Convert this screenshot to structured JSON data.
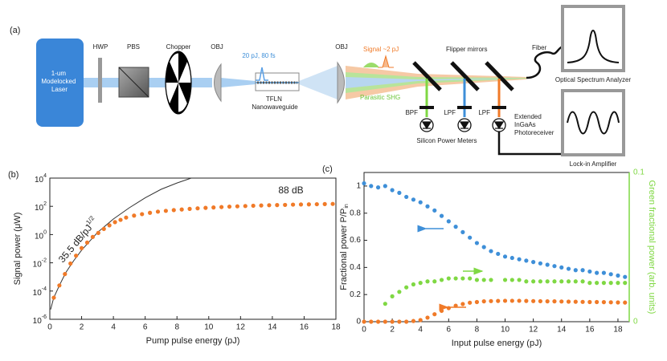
{
  "diagram": {
    "panel": "(a)",
    "laser": [
      "1-um",
      "Modelocked",
      "Laser"
    ],
    "hwp": "HWP",
    "pbs": "PBS",
    "chopper": "Chopper",
    "obj1": "OBJ",
    "pulse": "20 pJ, 80 fs",
    "waveguide": [
      "TFLN",
      "Nanowaveguide"
    ],
    "obj2": "OBJ",
    "signal": "Signal ~2 pJ",
    "shg": "Parasitic SHG",
    "flipper": "Flipper mirrors",
    "fiber": "Fiber",
    "osa": "Optical Spectrum Analyzer",
    "filters": [
      "BPF",
      "LPF",
      "LPF"
    ],
    "meters": "Silicon Power Meters",
    "photoreceiver": [
      "Extended",
      "InGaAs",
      "Photoreceiver"
    ],
    "lockin": "Lock-in Amplifier"
  },
  "chart_data": [
    {
      "type": "scatter",
      "panel": "(b)",
      "xlabel": "Pump pulse energy (pJ)",
      "ylabel": "Signal power (μW)",
      "xlim": [
        0,
        18
      ],
      "xticks": [
        0,
        2,
        4,
        6,
        8,
        10,
        12,
        14,
        16,
        18
      ],
      "ylim": [
        1e-06,
        10000
      ],
      "yscale": "log",
      "yticks": [
        {
          "value": 1e-06,
          "label": "10",
          "exponent": "-6"
        },
        {
          "value": 0.0001,
          "label": "10",
          "exponent": "-4"
        },
        {
          "value": 0.01,
          "label": "10",
          "exponent": "-2"
        },
        {
          "value": 1,
          "label": "10",
          "exponent": "0"
        },
        {
          "value": 100,
          "label": "10",
          "exponent": "2"
        },
        {
          "value": 10000,
          "label": "10",
          "exponent": "4"
        }
      ],
      "annotations": [
        {
          "text": "35.5 dB/pJ",
          "sup": "1/2"
        },
        {
          "text": "88 dB"
        }
      ],
      "series": [
        {
          "kind": "line",
          "color": "#333333",
          "x": [
            0.05,
            0.25,
            0.6,
            1,
            1.5,
            2,
            3,
            4,
            5,
            6,
            7,
            8,
            8.9
          ],
          "values": [
            5e-06,
            3.4e-05,
            0.00025,
            0.002,
            0.014,
            0.079,
            1.4,
            12.6,
            79,
            400,
            1600,
            4500,
            10000
          ]
        },
        {
          "kind": "scatter",
          "color": "#f07a28",
          "x": [
            0.25,
            0.6,
            0.95,
            1.3,
            1.65,
            2,
            2.35,
            2.7,
            3.05,
            3.4,
            3.75,
            4.1,
            4.45,
            4.8,
            5.3,
            5.8,
            6.3,
            6.8,
            7.3,
            7.8,
            8.3,
            8.8,
            9.3,
            9.8,
            10.3,
            10.8,
            11.3,
            11.8,
            12.3,
            12.8,
            13.3,
            13.8,
            14.3,
            14.8,
            15.3,
            15.8,
            16.3,
            16.8,
            17.3,
            17.8
          ],
          "values": [
            3.4e-05,
            0.00025,
            0.0016,
            0.0089,
            0.032,
            0.11,
            0.27,
            0.68,
            1.3,
            2.5,
            4.5,
            7.6,
            11,
            16,
            22,
            28,
            35,
            42,
            48,
            54,
            60,
            66,
            72,
            78,
            83,
            89,
            95,
            100,
            105,
            110,
            115,
            120,
            123,
            126,
            132,
            135,
            138,
            141,
            145,
            148
          ]
        }
      ]
    },
    {
      "type": "scatter",
      "panel": "(c)",
      "xlabel": "Input pulse energy (pJ)",
      "ylabel": "Fractional power P/P",
      "ylabel_sub": "in",
      "y2label": "Green fractional power (arb. units)",
      "y2color": "#7fd843",
      "xlim": [
        0,
        18.8
      ],
      "xticks": [
        0,
        2,
        4,
        6,
        8,
        10,
        12,
        14,
        16,
        18
      ],
      "ylim": [
        0,
        1.1
      ],
      "yticks": [
        0,
        0.2,
        0.4,
        0.6,
        0.8,
        1
      ],
      "y2lim": [
        0,
        0.1
      ],
      "y2ticks": [
        0,
        0.1
      ],
      "series": [
        {
          "kind": "scatter",
          "color": "#3e8fd8",
          "x": [
            0,
            0.5,
            1,
            1.5,
            2,
            2.5,
            3,
            3.5,
            4,
            4.5,
            5,
            5.5,
            6,
            6.5,
            7,
            7.5,
            8,
            8.5,
            9,
            9.5,
            10,
            10.5,
            11,
            11.5,
            12,
            12.5,
            13,
            13.5,
            14,
            14.5,
            15,
            15.5,
            16,
            16.5,
            17,
            17.5,
            18,
            18.5
          ],
          "values": [
            1.02,
            1.0,
            0.99,
            1.0,
            0.97,
            0.95,
            0.92,
            0.9,
            0.88,
            0.85,
            0.82,
            0.78,
            0.74,
            0.7,
            0.66,
            0.62,
            0.58,
            0.55,
            0.52,
            0.5,
            0.48,
            0.47,
            0.46,
            0.45,
            0.44,
            0.43,
            0.42,
            0.41,
            0.4,
            0.39,
            0.38,
            0.38,
            0.37,
            0.36,
            0.36,
            0.35,
            0.34,
            0.33
          ]
        },
        {
          "kind": "scatter",
          "color": "#f07a28",
          "x": [
            0,
            0.5,
            1,
            1.5,
            2,
            2.5,
            3,
            3.5,
            4,
            4.5,
            5,
            5.5,
            6,
            6.5,
            7,
            7.5,
            8,
            8.5,
            9,
            9.5,
            10,
            10.5,
            11,
            11.5,
            12,
            12.5,
            13,
            13.5,
            14,
            14.5,
            15,
            15.5,
            16,
            16.5,
            17,
            17.5,
            18,
            18.5
          ],
          "values": [
            0,
            0,
            0,
            0,
            0,
            0,
            0,
            0.005,
            0.012,
            0.03,
            0.055,
            0.08,
            0.1,
            0.118,
            0.13,
            0.14,
            0.145,
            0.15,
            0.152,
            0.153,
            0.154,
            0.154,
            0.154,
            0.153,
            0.152,
            0.151,
            0.15,
            0.15,
            0.149,
            0.148,
            0.147,
            0.146,
            0.145,
            0.145,
            0.144,
            0.143,
            0.142,
            0.141
          ]
        },
        {
          "kind": "scatter",
          "color": "#7fd843",
          "axis": "y2",
          "x": [
            1.5,
            2,
            2.5,
            3,
            3.5,
            4,
            4.5,
            5,
            5.5,
            6,
            6.5,
            7,
            7.5,
            8,
            8.5,
            9,
            10,
            10.5,
            11,
            11.5,
            12,
            12.5,
            13,
            13.5,
            14,
            14.5,
            15,
            15.5,
            16,
            16.5,
            17,
            17.5,
            18,
            18.5
          ],
          "values": [
            0.012,
            0.017,
            0.02,
            0.023,
            0.025,
            0.026,
            0.027,
            0.027,
            0.028,
            0.029,
            0.029,
            0.029,
            0.029,
            0.028,
            0.028,
            0.028,
            0.028,
            0.028,
            0.028,
            0.027,
            0.027,
            0.027,
            0.027,
            0.027,
            0.027,
            0.027,
            0.027,
            0.027,
            0.026,
            0.026,
            0.026,
            0.026,
            0.026,
            0.026
          ]
        }
      ]
    }
  ]
}
